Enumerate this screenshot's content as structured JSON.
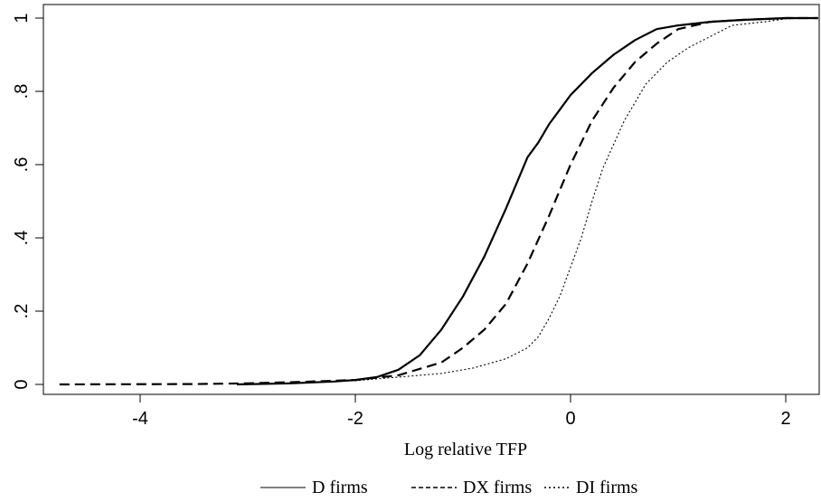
{
  "chart_data": {
    "type": "line",
    "title": "",
    "xlabel": "Log relative TFP",
    "ylabel": "",
    "xlim": [
      -4.85,
      2.3
    ],
    "ylim": [
      0,
      1
    ],
    "x_ticks": [
      -4,
      -2,
      0,
      2
    ],
    "x_tick_labels": [
      "-4",
      "-2",
      "0",
      "2"
    ],
    "y_ticks": [
      0,
      0.2,
      0.4,
      0.6,
      0.8,
      1
    ],
    "y_tick_labels": [
      "0",
      ".2",
      ".4",
      ".6",
      ".8",
      "1"
    ],
    "grid": false,
    "legend": {
      "placement": "bottom",
      "entries": [
        {
          "label": "D firms",
          "marker": "———"
        },
        {
          "label": "DX firms",
          "marker": "-----"
        },
        {
          "label": "DI firms",
          "marker": "·····"
        }
      ]
    },
    "series": [
      {
        "name": "D firms",
        "style": "solid",
        "color": "#000000",
        "points": [
          [
            -3.1,
            0.0
          ],
          [
            -2.6,
            0.003
          ],
          [
            -2.2,
            0.008
          ],
          [
            -2.0,
            0.012
          ],
          [
            -1.8,
            0.02
          ],
          [
            -1.6,
            0.04
          ],
          [
            -1.4,
            0.08
          ],
          [
            -1.2,
            0.15
          ],
          [
            -1.0,
            0.24
          ],
          [
            -0.8,
            0.35
          ],
          [
            -0.6,
            0.48
          ],
          [
            -0.4,
            0.62
          ],
          [
            -0.3,
            0.66
          ],
          [
            -0.2,
            0.71
          ],
          [
            -0.1,
            0.75
          ],
          [
            0.0,
            0.79
          ],
          [
            0.2,
            0.85
          ],
          [
            0.4,
            0.9
          ],
          [
            0.6,
            0.94
          ],
          [
            0.8,
            0.97
          ],
          [
            1.0,
            0.98
          ],
          [
            1.3,
            0.99
          ],
          [
            1.6,
            0.995
          ],
          [
            2.0,
            1.0
          ],
          [
            2.3,
            1.0
          ]
        ]
      },
      {
        "name": "DX firms",
        "style": "dashed",
        "color": "#000000",
        "points": [
          [
            -4.75,
            0.0
          ],
          [
            -3.5,
            0.001
          ],
          [
            -3.0,
            0.003
          ],
          [
            -2.5,
            0.007
          ],
          [
            -2.0,
            0.012
          ],
          [
            -1.6,
            0.025
          ],
          [
            -1.2,
            0.06
          ],
          [
            -1.0,
            0.1
          ],
          [
            -0.8,
            0.15
          ],
          [
            -0.6,
            0.22
          ],
          [
            -0.4,
            0.33
          ],
          [
            -0.2,
            0.46
          ],
          [
            0.0,
            0.6
          ],
          [
            0.1,
            0.66
          ],
          [
            0.2,
            0.72
          ],
          [
            0.4,
            0.81
          ],
          [
            0.6,
            0.88
          ],
          [
            0.8,
            0.93
          ],
          [
            1.0,
            0.97
          ],
          [
            1.3,
            0.99
          ],
          [
            1.6,
            0.995
          ],
          [
            2.0,
            1.0
          ],
          [
            2.3,
            1.0
          ]
        ]
      },
      {
        "name": "DI firms",
        "style": "dotted",
        "color": "#000000",
        "points": [
          [
            -3.1,
            0.0
          ],
          [
            -2.5,
            0.005
          ],
          [
            -2.0,
            0.01
          ],
          [
            -1.6,
            0.02
          ],
          [
            -1.2,
            0.03
          ],
          [
            -0.9,
            0.045
          ],
          [
            -0.6,
            0.07
          ],
          [
            -0.4,
            0.1
          ],
          [
            -0.3,
            0.13
          ],
          [
            -0.2,
            0.18
          ],
          [
            -0.1,
            0.24
          ],
          [
            0.0,
            0.32
          ],
          [
            0.1,
            0.4
          ],
          [
            0.2,
            0.5
          ],
          [
            0.3,
            0.59
          ],
          [
            0.5,
            0.72
          ],
          [
            0.7,
            0.82
          ],
          [
            0.9,
            0.88
          ],
          [
            1.1,
            0.92
          ],
          [
            1.3,
            0.95
          ],
          [
            1.5,
            0.98
          ],
          [
            1.8,
            0.99
          ],
          [
            2.0,
            0.998
          ],
          [
            2.3,
            1.0
          ]
        ]
      }
    ]
  }
}
